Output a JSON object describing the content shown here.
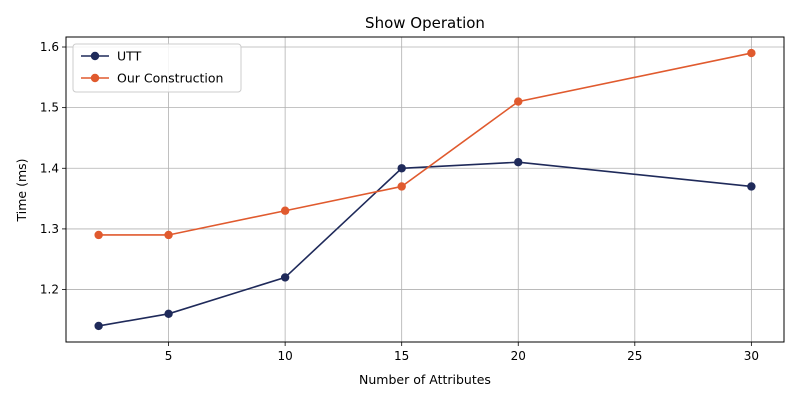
{
  "chart_data": {
    "type": "line",
    "title": "Show Operation",
    "xlabel": "Number of Attributes",
    "ylabel": "Time (ms)",
    "x": [
      2,
      5,
      10,
      15,
      20,
      30
    ],
    "xlim": [
      0.6,
      31.4
    ],
    "ylim": [
      1.1135,
      1.6165
    ],
    "xticks": [
      5,
      10,
      15,
      20,
      25,
      30
    ],
    "yticks": [
      1.2,
      1.3,
      1.4,
      1.5,
      1.6
    ],
    "xtick_labels": [
      "5",
      "10",
      "15",
      "20",
      "25",
      "30"
    ],
    "ytick_labels": [
      "1.2",
      "1.3",
      "1.4",
      "1.5",
      "1.6"
    ],
    "grid": true,
    "legend_position": "top-left",
    "series": [
      {
        "name": "UTT",
        "color": "#1f2a5a",
        "values": [
          1.14,
          1.16,
          1.22,
          1.4,
          1.41,
          1.37
        ]
      },
      {
        "name": "Our Construction",
        "color": "#e05a2e",
        "values": [
          1.29,
          1.29,
          1.33,
          1.37,
          1.51,
          1.59
        ]
      }
    ]
  }
}
